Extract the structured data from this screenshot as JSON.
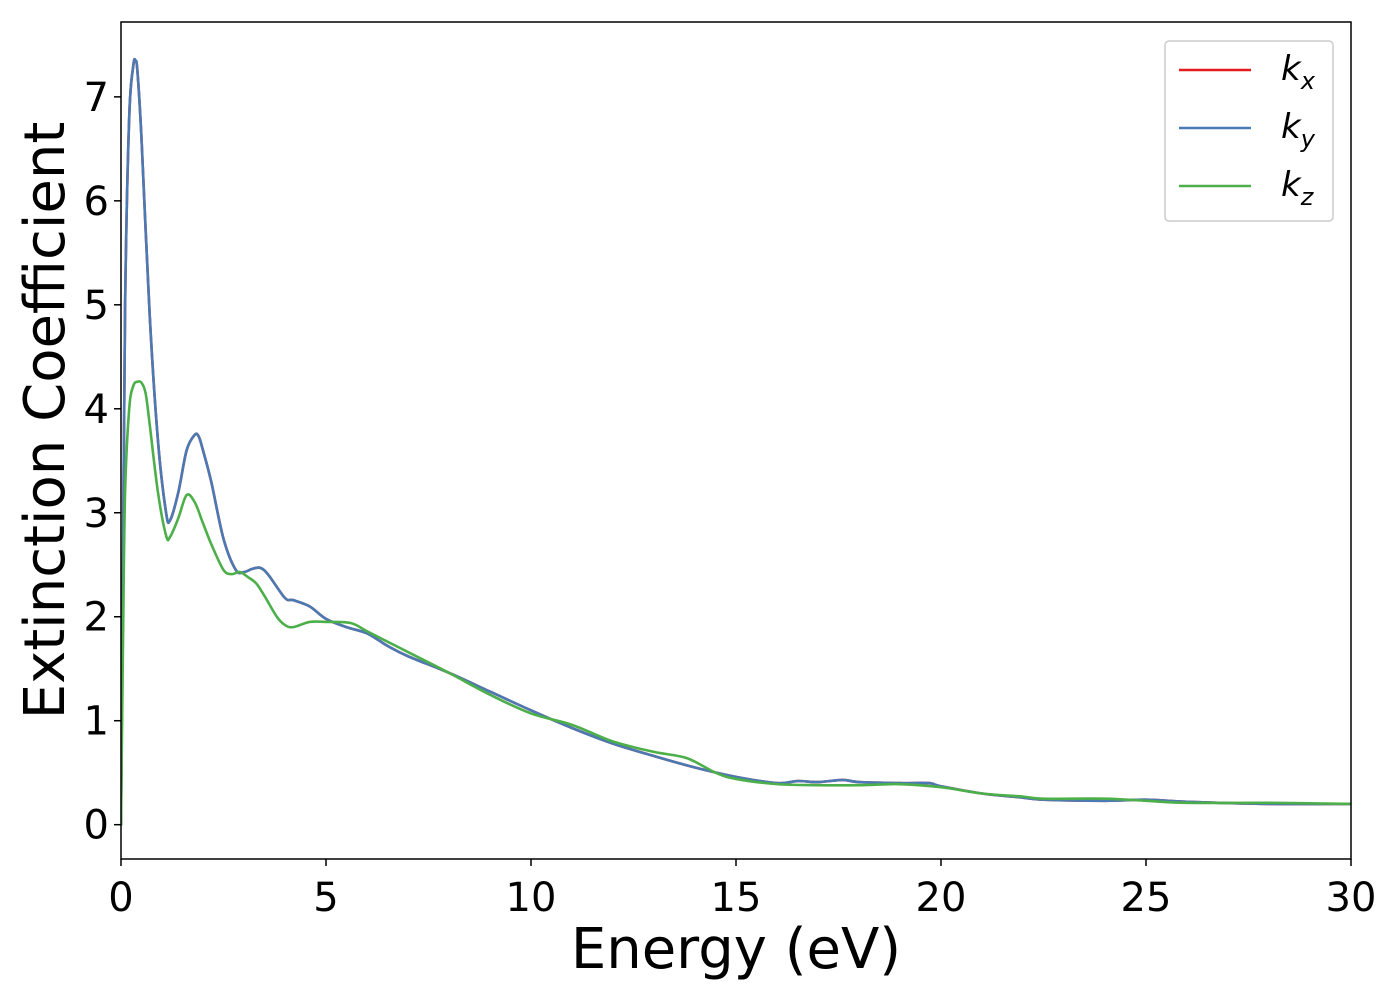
{
  "chart_data": {
    "type": "line",
    "title": "",
    "xlabel": "Energy (eV)",
    "ylabel": "Extinction Coefficient",
    "xlim": [
      0,
      30
    ],
    "ylim": [
      -0.33,
      7.72
    ],
    "xticks": [
      0,
      5,
      10,
      15,
      20,
      25,
      30
    ],
    "xtick_labels": [
      "0",
      "5",
      "10",
      "15",
      "20",
      "25",
      "30"
    ],
    "yticks": [
      0,
      1,
      2,
      3,
      4,
      5,
      6,
      7
    ],
    "ytick_labels": [
      "0",
      "1",
      "2",
      "3",
      "4",
      "5",
      "6",
      "7"
    ],
    "grid": false,
    "legend_position": "top-right",
    "series": [
      {
        "name": "k_x",
        "label_main": "k",
        "label_sub": "x",
        "color": "#e41a1c",
        "x": [
          0,
          0.05,
          0.1,
          0.2,
          0.3,
          0.35,
          0.4,
          0.5,
          0.7,
          0.9,
          1.1,
          1.2,
          1.4,
          1.6,
          1.8,
          1.9,
          2.0,
          2.2,
          2.5,
          2.8,
          3.0,
          3.2,
          3.4,
          3.6,
          4.0,
          4.2,
          4.6,
          5.0,
          5.5,
          6.0,
          6.5,
          7.0,
          8.0,
          9.0,
          10.0,
          11.0,
          12.0,
          13.0,
          14.0,
          15.0,
          16.0,
          16.5,
          17.0,
          17.6,
          18.0,
          19.0,
          19.7,
          20.0,
          21.0,
          22.0,
          22.5,
          24.0,
          25.0,
          26.0,
          28.0,
          30.0
        ],
        "y": [
          0.0,
          2.5,
          5.0,
          6.8,
          7.3,
          7.35,
          7.25,
          6.6,
          4.9,
          3.7,
          3.0,
          2.93,
          3.2,
          3.6,
          3.75,
          3.73,
          3.6,
          3.3,
          2.75,
          2.45,
          2.43,
          2.46,
          2.47,
          2.4,
          2.18,
          2.16,
          2.1,
          1.98,
          1.9,
          1.84,
          1.72,
          1.62,
          1.46,
          1.28,
          1.1,
          0.93,
          0.78,
          0.66,
          0.55,
          0.46,
          0.4,
          0.42,
          0.41,
          0.43,
          0.41,
          0.4,
          0.4,
          0.37,
          0.3,
          0.26,
          0.24,
          0.23,
          0.24,
          0.22,
          0.2,
          0.2
        ]
      },
      {
        "name": "k_y",
        "label_main": "k",
        "label_sub": "y",
        "color": "#4a7ab3",
        "x": [
          0,
          0.05,
          0.1,
          0.2,
          0.3,
          0.35,
          0.4,
          0.5,
          0.7,
          0.9,
          1.1,
          1.2,
          1.4,
          1.6,
          1.8,
          1.9,
          2.0,
          2.2,
          2.5,
          2.8,
          3.0,
          3.2,
          3.4,
          3.6,
          4.0,
          4.2,
          4.6,
          5.0,
          5.5,
          6.0,
          6.5,
          7.0,
          8.0,
          9.0,
          10.0,
          11.0,
          12.0,
          13.0,
          14.0,
          15.0,
          16.0,
          16.5,
          17.0,
          17.6,
          18.0,
          19.0,
          19.7,
          20.0,
          21.0,
          22.0,
          22.5,
          24.0,
          25.0,
          26.0,
          28.0,
          30.0
        ],
        "y": [
          0.0,
          2.5,
          5.0,
          6.8,
          7.3,
          7.35,
          7.25,
          6.6,
          4.9,
          3.7,
          3.0,
          2.93,
          3.2,
          3.6,
          3.75,
          3.73,
          3.6,
          3.3,
          2.75,
          2.45,
          2.43,
          2.46,
          2.47,
          2.4,
          2.18,
          2.16,
          2.1,
          1.98,
          1.9,
          1.84,
          1.72,
          1.62,
          1.46,
          1.28,
          1.1,
          0.93,
          0.78,
          0.66,
          0.55,
          0.46,
          0.4,
          0.42,
          0.41,
          0.43,
          0.41,
          0.4,
          0.4,
          0.37,
          0.3,
          0.26,
          0.24,
          0.23,
          0.24,
          0.22,
          0.2,
          0.2
        ]
      },
      {
        "name": "k_z",
        "label_main": "k",
        "label_sub": "z",
        "color": "#4daf4a",
        "x": [
          0,
          0.05,
          0.1,
          0.2,
          0.3,
          0.4,
          0.5,
          0.6,
          0.7,
          0.9,
          1.1,
          1.2,
          1.4,
          1.6,
          1.8,
          2.0,
          2.2,
          2.5,
          2.7,
          2.9,
          3.1,
          3.3,
          3.5,
          3.8,
          4.0,
          4.2,
          4.6,
          5.0,
          5.6,
          6.0,
          6.5,
          7.0,
          8.0,
          9.0,
          10.0,
          11.0,
          12.0,
          13.0,
          13.8,
          14.5,
          15.0,
          16.0,
          17.0,
          18.0,
          19.0,
          20.0,
          21.0,
          22.0,
          22.5,
          24.0,
          25.0,
          26.0,
          28.0,
          30.0
        ],
        "y": [
          0.0,
          1.8,
          3.2,
          4.0,
          4.22,
          4.26,
          4.25,
          4.15,
          3.85,
          3.2,
          2.78,
          2.77,
          2.95,
          3.17,
          3.1,
          2.9,
          2.7,
          2.45,
          2.41,
          2.43,
          2.38,
          2.32,
          2.2,
          2.0,
          1.92,
          1.9,
          1.95,
          1.95,
          1.94,
          1.86,
          1.76,
          1.66,
          1.46,
          1.25,
          1.07,
          0.96,
          0.8,
          0.7,
          0.64,
          0.5,
          0.44,
          0.39,
          0.38,
          0.38,
          0.39,
          0.36,
          0.3,
          0.27,
          0.25,
          0.25,
          0.23,
          0.21,
          0.21,
          0.2
        ]
      }
    ]
  }
}
